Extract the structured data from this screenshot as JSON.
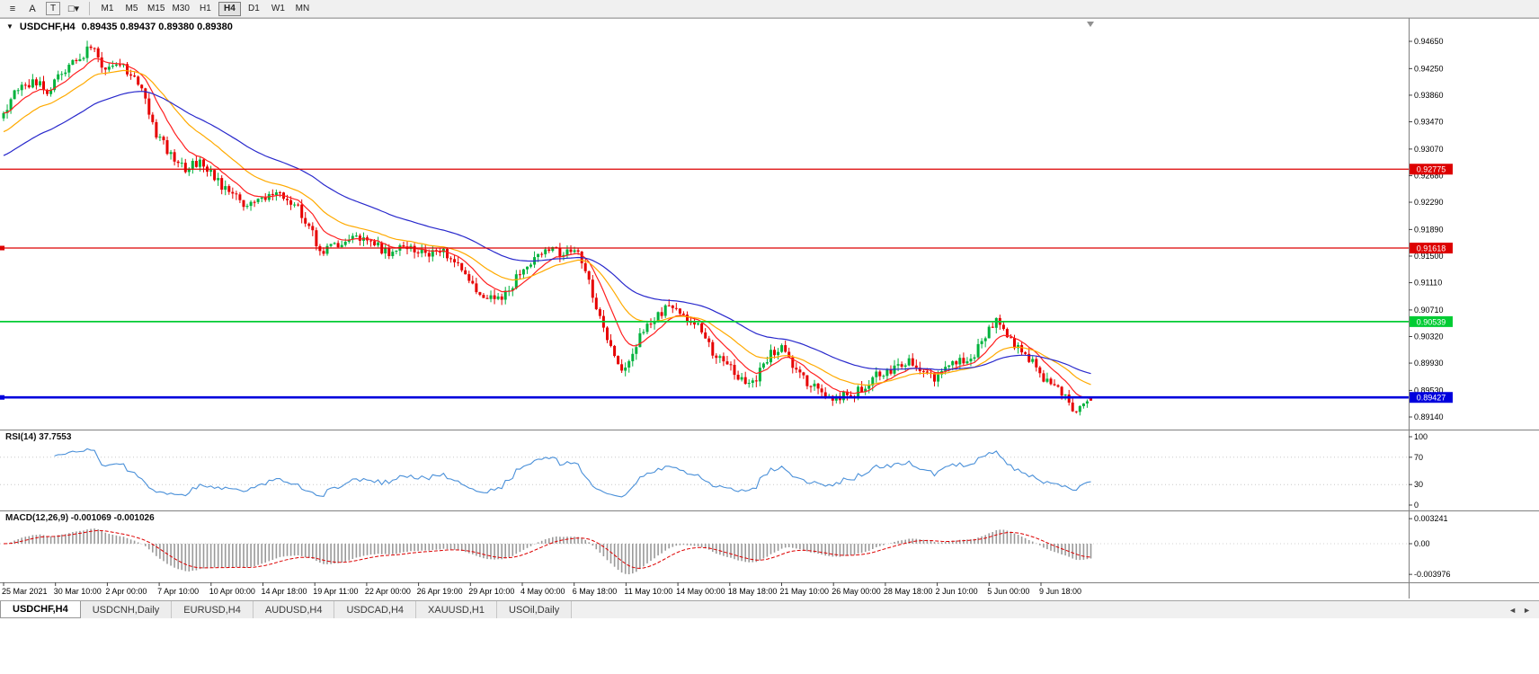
{
  "toolbar": {
    "tools": [
      {
        "name": "draw-lines-tool",
        "glyph": "≡",
        "boxed": false
      },
      {
        "name": "text-label-tool",
        "glyph": "A",
        "boxed": false
      },
      {
        "name": "text-tool",
        "glyph": "T",
        "boxed": true
      },
      {
        "name": "shapes-tool",
        "glyph": "□▾",
        "boxed": false
      }
    ],
    "timeframes": [
      "M1",
      "M5",
      "M15",
      "M30",
      "H1",
      "H4",
      "D1",
      "W1",
      "MN"
    ],
    "active_timeframe": "H4"
  },
  "chart": {
    "title_symbol": "USDCHF,H4",
    "title_ohlc": "0.89435 0.89437 0.89380 0.89380",
    "rsi_label": "RSI(14) 37.7553",
    "macd_label": "MACD(12,26,9) -0.001069 -0.001026"
  },
  "chart_data": {
    "type": "candlestick",
    "symbol": "USDCHF",
    "timeframe": "H4",
    "current": {
      "open": 0.89435,
      "high": 0.89437,
      "low": 0.8938,
      "close": 0.8938
    },
    "y_range": [
      0.8914,
      0.9465
    ],
    "y_ticks": [
      "0.94650",
      "0.94250",
      "0.93860",
      "0.93470",
      "0.93070",
      "0.92680",
      "0.92290",
      "0.91890",
      "0.91500",
      "0.91110",
      "0.90710",
      "0.90320",
      "0.89930",
      "0.89530",
      "0.89140"
    ],
    "levels": [
      {
        "price": 0.92775,
        "label": "0.92775",
        "color": "#dd0000",
        "width": 1.2,
        "text_color": "#ffffff",
        "handle": false
      },
      {
        "price": 0.91618,
        "label": "0.91618",
        "color": "#dd0000",
        "width": 1.2,
        "text_color": "#ffffff",
        "handle": true
      },
      {
        "price": 0.90539,
        "label": "0.90539",
        "color": "#00cc33",
        "width": 1.8,
        "text_color": "#ffffff",
        "handle": false
      },
      {
        "price": 0.89427,
        "label": "0.89427",
        "color": "#0000dd",
        "width": 2.6,
        "text_color": "#ffffff",
        "handle": true
      }
    ],
    "num_candles": 300,
    "close_anchors": [
      [
        0,
        0.936
      ],
      [
        4,
        0.9395
      ],
      [
        9,
        0.9405
      ],
      [
        12,
        0.9393
      ],
      [
        16,
        0.942
      ],
      [
        21,
        0.9442
      ],
      [
        25,
        0.9461
      ],
      [
        27,
        0.9424
      ],
      [
        31,
        0.9436
      ],
      [
        36,
        0.9415
      ],
      [
        39,
        0.938
      ],
      [
        42,
        0.933
      ],
      [
        46,
        0.9298
      ],
      [
        50,
        0.9275
      ],
      [
        54,
        0.9291
      ],
      [
        57,
        0.9272
      ],
      [
        61,
        0.9246
      ],
      [
        66,
        0.9226
      ],
      [
        71,
        0.9231
      ],
      [
        76,
        0.9241
      ],
      [
        81,
        0.9221
      ],
      [
        85,
        0.9186
      ],
      [
        87,
        0.9152
      ],
      [
        91,
        0.9165
      ],
      [
        96,
        0.9176
      ],
      [
        101,
        0.9168
      ],
      [
        106,
        0.9156
      ],
      [
        111,
        0.9161
      ],
      [
        116,
        0.9151
      ],
      [
        121,
        0.9158
      ],
      [
        126,
        0.9131
      ],
      [
        130,
        0.9101
      ],
      [
        135,
        0.9086
      ],
      [
        139,
        0.9096
      ],
      [
        142,
        0.9129
      ],
      [
        146,
        0.9146
      ],
      [
        150,
        0.9161
      ],
      [
        154,
        0.9151
      ],
      [
        157,
        0.9161
      ],
      [
        160,
        0.913
      ],
      [
        162,
        0.9092
      ],
      [
        165,
        0.9051
      ],
      [
        167,
        0.9012
      ],
      [
        170,
        0.8986
      ],
      [
        172,
        0.9001
      ],
      [
        176,
        0.9041
      ],
      [
        180,
        0.9066
      ],
      [
        184,
        0.9076
      ],
      [
        187,
        0.9061
      ],
      [
        191,
        0.9046
      ],
      [
        195,
        0.9011
      ],
      [
        199,
        0.8996
      ],
      [
        202,
        0.8971
      ],
      [
        206,
        0.8961
      ],
      [
        210,
        0.9001
      ],
      [
        214,
        0.9021
      ],
      [
        217,
        0.8991
      ],
      [
        221,
        0.8966
      ],
      [
        225,
        0.8946
      ],
      [
        229,
        0.8941
      ],
      [
        232,
        0.8946
      ],
      [
        236,
        0.8956
      ],
      [
        240,
        0.8976
      ],
      [
        245,
        0.8986
      ],
      [
        249,
        0.8996
      ],
      [
        252,
        0.8986
      ],
      [
        256,
        0.8971
      ],
      [
        260,
        0.8991
      ],
      [
        264,
        0.8996
      ],
      [
        267,
        0.9006
      ],
      [
        271,
        0.9046
      ],
      [
        274,
        0.9056
      ],
      [
        276,
        0.9031
      ],
      [
        280,
        0.9011
      ],
      [
        284,
        0.8986
      ],
      [
        287,
        0.8966
      ],
      [
        291,
        0.8951
      ],
      [
        294,
        0.8921
      ],
      [
        297,
        0.8936
      ],
      [
        300,
        0.8938
      ]
    ],
    "moving_averages": [
      {
        "name": "ma-fast",
        "period": 10,
        "color": "#ff2020"
      },
      {
        "name": "ma-mid",
        "period": 24,
        "color": "#ffaa00"
      },
      {
        "name": "ma-slow",
        "period": 52,
        "color": "#2828cc"
      }
    ],
    "rsi": {
      "period": 14,
      "value": 37.7553,
      "color": "#4a90d9",
      "scale": [
        "100",
        "70",
        "30",
        "0"
      ],
      "bands": [
        70,
        30
      ]
    },
    "macd": {
      "fast": 12,
      "slow": 26,
      "signal_period": 9,
      "value": -0.001069,
      "signal_value": -0.001026,
      "hist_color": "#9a9a9a",
      "signal_color": "#dd0000",
      "scale_top": "0.003241",
      "scale_zero": "0.00",
      "scale_bottom": "-0.003976"
    },
    "time_labels": [
      "25 Mar 2021",
      "30 Mar 10:00",
      "2 Apr 00:00",
      "7 Apr 10:00",
      "10 Apr 00:00",
      "14 Apr 18:00",
      "19 Apr 11:00",
      "22 Apr 00:00",
      "26 Apr 19:00",
      "29 Apr 10:00",
      "4 May 00:00",
      "6 May 18:00",
      "11 May 10:00",
      "14 May 00:00",
      "18 May 18:00",
      "21 May 10:00",
      "26 May 00:00",
      "28 May 18:00",
      "2 Jun 10:00",
      "5 Jun 00:00",
      "9 Jun 18:00"
    ],
    "colors": {
      "up": "#00b23c",
      "down": "#e60000",
      "background": "#ffffff",
      "axis_text": "#000000"
    }
  },
  "tabs": {
    "items": [
      "USDCHF,H4",
      "USDCNH,Daily",
      "EURUSD,H4",
      "AUDUSD,H4",
      "USDCAD,H4",
      "XAUUSD,H1",
      "USOil,Daily"
    ],
    "active": "USDCHF,H4"
  }
}
